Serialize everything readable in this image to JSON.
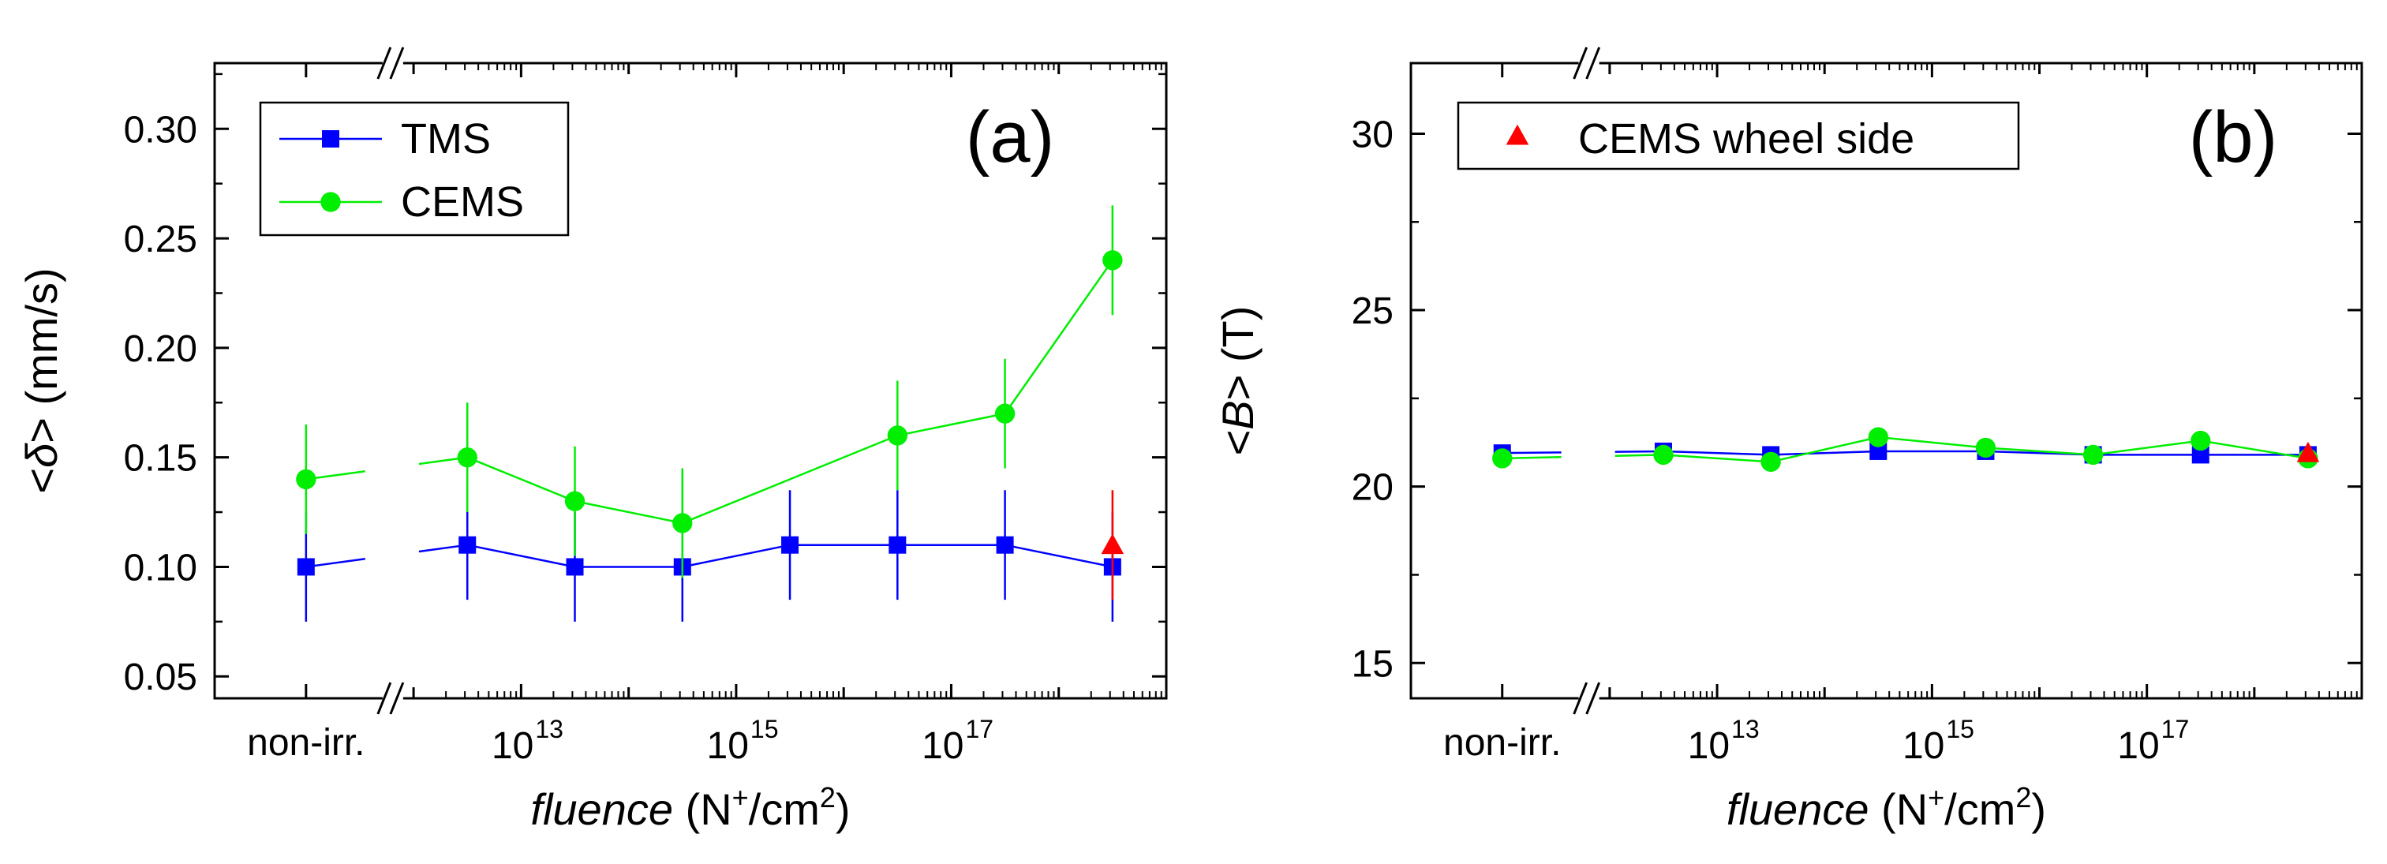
{
  "chart_data": [
    {
      "type": "scatter",
      "panel_label": "(a)",
      "xlabel_italic": "fluence",
      "xlabel_unit": [
        "(N",
        "+",
        "/cm",
        "2",
        ")"
      ],
      "ylabel_prefix": "<",
      "ylabel_symbol": "δ",
      "ylabel_suffix": ">",
      "ylabel_unit": "(mm/s)",
      "ylim": [
        0.04,
        0.33
      ],
      "yticks": [
        "0.05",
        "0.10",
        "0.15",
        "0.20",
        "0.25",
        "0.30"
      ],
      "ytick_values": [
        0.05,
        0.1,
        0.15,
        0.2,
        0.25,
        0.3
      ],
      "xlim": [
        10.15,
        19.0
      ],
      "xtick_labels": [
        {
          "x": 11,
          "text": "non-irr."
        },
        {
          "x": 13,
          "base": "10",
          "exp": "13"
        },
        {
          "x": 15,
          "base": "10",
          "exp": "15"
        },
        {
          "x": 17,
          "base": "10",
          "exp": "17"
        }
      ],
      "axis_break_x": 11.8,
      "x": [
        11,
        12.5,
        13.5,
        14.5,
        15.5,
        16.5,
        17.5,
        18.5
      ],
      "series": [
        {
          "name": "TMS",
          "color": "#0000ff",
          "marker": "square",
          "values": [
            0.1,
            0.11,
            0.1,
            0.1,
            0.11,
            0.11,
            0.11,
            0.1
          ],
          "errors": [
            0.025,
            0.025,
            0.025,
            0.025,
            0.025,
            0.025,
            0.025,
            0.025
          ]
        },
        {
          "name": "CEMS",
          "color": "#00ee00",
          "marker": "circle",
          "values": [
            0.14,
            0.15,
            0.13,
            0.12,
            0.16,
            0.17,
            0.24
          ],
          "errors": [
            0.025,
            0.025,
            0.025,
            0.025,
            0.025,
            0.025,
            0.025
          ],
          "x_index": [
            0,
            1,
            2,
            3,
            5,
            6,
            7
          ]
        },
        {
          "name": "CEMS wheel side",
          "color": "#ff0000",
          "marker": "triangle",
          "values": [
            0.11
          ],
          "errors": [
            0.025
          ],
          "x_override": [
            18.5
          ],
          "in_legend": false
        }
      ],
      "legend": [
        "TMS",
        "CEMS"
      ]
    },
    {
      "type": "scatter",
      "panel_label": "(b)",
      "xlabel_italic": "fluence",
      "xlabel_unit": [
        "(N",
        "+",
        "/cm",
        "2",
        ")"
      ],
      "ylabel_prefix": "<",
      "ylabel_symbol": "B",
      "ylabel_suffix": ">",
      "ylabel_unit": "(T)",
      "ylim": [
        14.0,
        32.0
      ],
      "yticks": [
        "15",
        "20",
        "25",
        "30"
      ],
      "ytick_values": [
        15,
        20,
        25,
        30
      ],
      "xlim": [
        10.15,
        19.0
      ],
      "xtick_labels": [
        {
          "x": 11,
          "text": "non-irr."
        },
        {
          "x": 13,
          "base": "10",
          "exp": "13"
        },
        {
          "x": 15,
          "base": "10",
          "exp": "15"
        },
        {
          "x": 17,
          "base": "10",
          "exp": "17"
        }
      ],
      "axis_break_x": 11.8,
      "x": [
        11,
        12.5,
        13.5,
        14.5,
        15.5,
        16.5,
        17.5,
        18.5
      ],
      "series": [
        {
          "name": "TMS",
          "color": "#0000ff",
          "marker": "square",
          "values": [
            20.95,
            21.0,
            20.9,
            21.0,
            21.0,
            20.9,
            20.9,
            20.9
          ],
          "in_legend": false
        },
        {
          "name": "CEMS",
          "color": "#00ee00",
          "marker": "circle",
          "values": [
            20.8,
            20.9,
            20.7,
            21.4,
            21.1,
            20.9,
            21.3,
            20.8
          ],
          "in_legend": false
        },
        {
          "name": "CEMS wheel side",
          "color": "#ff0000",
          "marker": "triangle",
          "values": [
            20.95
          ],
          "x_override": [
            18.5
          ]
        }
      ],
      "legend": [
        "CEMS wheel side"
      ]
    }
  ]
}
